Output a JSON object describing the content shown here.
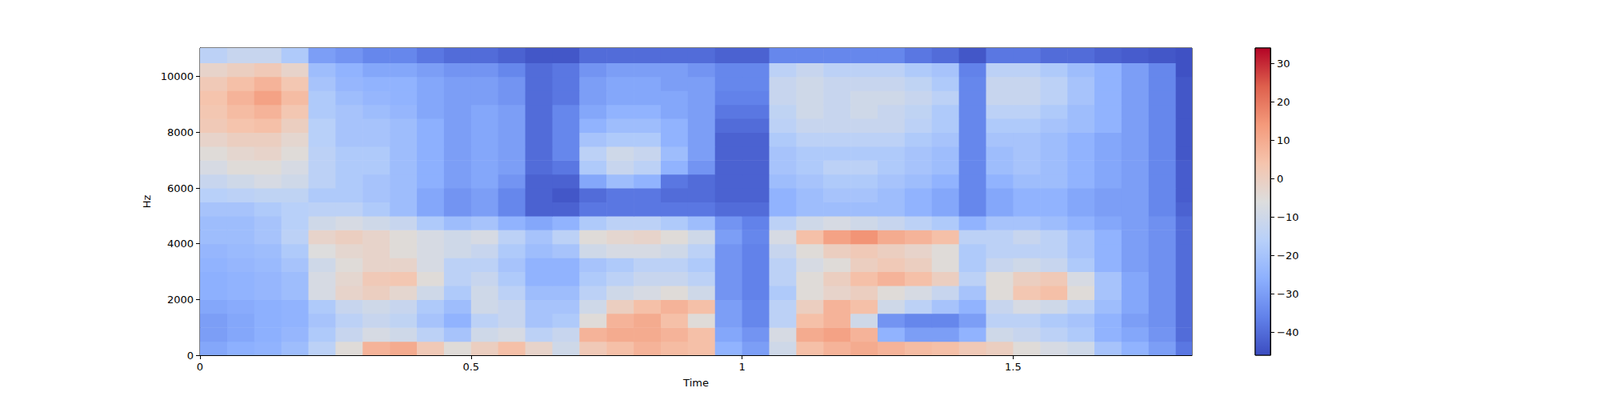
{
  "chart_data": {
    "type": "heatmap",
    "x_label": "Time",
    "y_label": "Hz",
    "x_edges": [
      0,
      0.05,
      0.1,
      0.15,
      0.2,
      0.25,
      0.3,
      0.35,
      0.4,
      0.45,
      0.5,
      0.55,
      0.6,
      0.65,
      0.7,
      0.75,
      0.8,
      0.85,
      0.9,
      0.95,
      1,
      1.05,
      1.1,
      1.15,
      1.2,
      1.25,
      1.3,
      1.35,
      1.4,
      1.45,
      1.5,
      1.55,
      1.6,
      1.65,
      1.7,
      1.75,
      1.8,
      1.85
    ],
    "y_edges": [
      0,
      500,
      1000,
      1500,
      2000,
      2500,
      3000,
      3500,
      4000,
      4500,
      5000,
      5500,
      6000,
      6500,
      7000,
      7500,
      8000,
      8500,
      9000,
      9500,
      10000,
      10500,
      11025
    ],
    "cells": [
      [
        -28,
        -26,
        -25,
        -22,
        -15,
        -5,
        8,
        10,
        2,
        -5,
        0,
        5,
        -2,
        -10,
        2,
        5,
        8,
        6,
        5,
        -25,
        -30,
        -10,
        5,
        8,
        10,
        8,
        6,
        5,
        2,
        0,
        -5,
        -8,
        -10,
        -20,
        -25,
        -30,
        -38
      ],
      [
        -30,
        -28,
        -26,
        -24,
        -18,
        -12,
        -8,
        -10,
        -15,
        -20,
        -10,
        -8,
        -15,
        -12,
        8,
        10,
        10,
        8,
        5,
        -28,
        -32,
        -8,
        10,
        12,
        8,
        -25,
        -30,
        -30,
        -25,
        -10,
        -12,
        -15,
        -18,
        -25,
        -28,
        -32,
        -40
      ],
      [
        -30,
        -28,
        -26,
        -25,
        -20,
        -15,
        -12,
        -14,
        -20,
        -25,
        -15,
        -12,
        -20,
        -18,
        -5,
        8,
        10,
        5,
        -5,
        -30,
        -35,
        -15,
        5,
        8,
        -10,
        -32,
        -35,
        -35,
        -30,
        -15,
        -15,
        -18,
        -20,
        -25,
        -30,
        -33,
        -40
      ],
      [
        -28,
        -27,
        -26,
        -25,
        -18,
        -12,
        -10,
        -12,
        -18,
        -22,
        -10,
        -12,
        -20,
        -20,
        -10,
        0,
        5,
        8,
        5,
        -30,
        -35,
        -15,
        0,
        8,
        5,
        -10,
        -15,
        -20,
        -25,
        -12,
        -8,
        -10,
        -15,
        -22,
        -28,
        -33,
        -40
      ],
      [
        -26,
        -25,
        -24,
        -22,
        -8,
        -2,
        0,
        -3,
        -10,
        -18,
        -10,
        -15,
        -22,
        -22,
        -15,
        -10,
        -8,
        -5,
        -10,
        -32,
        -36,
        -18,
        -5,
        -2,
        0,
        -5,
        -8,
        -12,
        -20,
        -5,
        3,
        5,
        -5,
        -20,
        -28,
        -33,
        -40
      ],
      [
        -26,
        -25,
        -24,
        -22,
        -8,
        -3,
        2,
        3,
        -5,
        -15,
        -12,
        -18,
        -25,
        -25,
        -18,
        -15,
        -12,
        -12,
        -15,
        -32,
        -36,
        -15,
        -5,
        0,
        5,
        8,
        5,
        0,
        -15,
        -5,
        0,
        2,
        -8,
        -20,
        -28,
        -33,
        -40
      ],
      [
        -25,
        -24,
        -23,
        -20,
        -10,
        -5,
        -2,
        -2,
        -8,
        -15,
        -15,
        -20,
        -25,
        -25,
        -20,
        -18,
        -15,
        -15,
        -18,
        -32,
        -36,
        -15,
        -8,
        -5,
        0,
        2,
        0,
        -5,
        -18,
        -12,
        -10,
        -12,
        -18,
        -25,
        -30,
        -33,
        -40
      ],
      [
        -24,
        -23,
        -22,
        -18,
        -6,
        -3,
        -2,
        -5,
        -8,
        -10,
        -12,
        -18,
        -22,
        -20,
        -10,
        -8,
        -8,
        -10,
        -15,
        -32,
        -36,
        -12,
        -5,
        0,
        2,
        0,
        -2,
        -5,
        -18,
        -15,
        -15,
        -15,
        -20,
        -25,
        -30,
        -33,
        -40
      ],
      [
        -22,
        -22,
        -20,
        -15,
        -2,
        0,
        -2,
        -5,
        -8,
        -10,
        -8,
        -15,
        -20,
        -15,
        -5,
        -3,
        -2,
        -5,
        -10,
        -30,
        -35,
        -8,
        5,
        12,
        15,
        10,
        8,
        5,
        -15,
        -15,
        -12,
        -15,
        -20,
        -25,
        -30,
        -33,
        -40
      ],
      [
        -22,
        -22,
        -20,
        -16,
        -10,
        -8,
        -10,
        -12,
        -18,
        -22,
        -20,
        -25,
        -28,
        -25,
        -18,
        -15,
        -15,
        -18,
        -22,
        -32,
        -36,
        -15,
        -10,
        -8,
        -10,
        -12,
        -15,
        -18,
        -25,
        -20,
        -20,
        -22,
        -25,
        -28,
        -30,
        -33,
        -40
      ],
      [
        -20,
        -20,
        -18,
        -16,
        -15,
        -15,
        -18,
        -22,
        -28,
        -32,
        -30,
        -35,
        -42,
        -42,
        -38,
        -38,
        -38,
        -38,
        -38,
        -40,
        -40,
        -25,
        -22,
        -22,
        -22,
        -22,
        -25,
        -28,
        -35,
        -28,
        -25,
        -25,
        -28,
        -30,
        -30,
        -35,
        -42
      ],
      [
        -16,
        -15,
        -14,
        -14,
        -18,
        -18,
        -20,
        -22,
        -28,
        -32,
        -30,
        -35,
        -42,
        -44,
        -40,
        -38,
        -38,
        -40,
        -40,
        -42,
        -42,
        -25,
        -22,
        -20,
        -20,
        -22,
        -25,
        -28,
        -35,
        -28,
        -25,
        -25,
        -28,
        -30,
        -30,
        -35,
        -43
      ],
      [
        -12,
        -10,
        -8,
        -10,
        -15,
        -18,
        -20,
        -22,
        -26,
        -30,
        -28,
        -32,
        -42,
        -42,
        -28,
        -22,
        -25,
        -38,
        -40,
        -42,
        -42,
        -22,
        -20,
        -18,
        -18,
        -20,
        -22,
        -25,
        -35,
        -25,
        -22,
        -22,
        -25,
        -28,
        -30,
        -35,
        -43
      ],
      [
        -8,
        -5,
        -5,
        -8,
        -15,
        -18,
        -18,
        -22,
        -26,
        -30,
        -28,
        -30,
        -40,
        -38,
        -18,
        -12,
        -15,
        -25,
        -32,
        -42,
        -42,
        -20,
        -18,
        -15,
        -15,
        -18,
        -20,
        -22,
        -35,
        -22,
        -20,
        -22,
        -25,
        -28,
        -30,
        -35,
        -43
      ],
      [
        -5,
        -3,
        -2,
        -5,
        -15,
        -18,
        -18,
        -22,
        -26,
        -30,
        -28,
        -30,
        -40,
        -35,
        -15,
        -10,
        -12,
        -22,
        -30,
        -42,
        -42,
        -20,
        -18,
        -18,
        -18,
        -18,
        -20,
        -22,
        -35,
        -22,
        -20,
        -22,
        -25,
        -28,
        -30,
        -35,
        -44
      ],
      [
        -2,
        0,
        0,
        -3,
        -16,
        -20,
        -20,
        -22,
        -26,
        -30,
        -28,
        -30,
        -40,
        -35,
        -20,
        -18,
        -18,
        -25,
        -30,
        -42,
        -42,
        -18,
        -15,
        -15,
        -15,
        -15,
        -18,
        -20,
        -35,
        -20,
        -20,
        -22,
        -25,
        -28,
        -30,
        -35,
        -44
      ],
      [
        2,
        4,
        5,
        0,
        -16,
        -20,
        -20,
        -22,
        -26,
        -30,
        -28,
        -30,
        -40,
        -35,
        -25,
        -22,
        -22,
        -25,
        -30,
        -40,
        -40,
        -15,
        -12,
        -12,
        -12,
        -12,
        -15,
        -18,
        -35,
        -18,
        -18,
        -20,
        -22,
        -25,
        -30,
        -35,
        -44
      ],
      [
        3,
        6,
        8,
        3,
        -18,
        -20,
        -22,
        -24,
        -28,
        -30,
        -28,
        -30,
        -40,
        -35,
        -28,
        -25,
        -25,
        -28,
        -30,
        -38,
        -38,
        -14,
        -10,
        -12,
        -10,
        -12,
        -14,
        -18,
        -35,
        -15,
        -15,
        -18,
        -22,
        -25,
        -30,
        -35,
        -44
      ],
      [
        4,
        8,
        12,
        6,
        -18,
        -22,
        -24,
        -25,
        -28,
        -30,
        -30,
        -32,
        -40,
        -38,
        -30,
        -28,
        -28,
        -28,
        -30,
        -36,
        -36,
        -12,
        -10,
        -12,
        -10,
        -10,
        -12,
        -15,
        -35,
        -12,
        -12,
        -15,
        -20,
        -25,
        -30,
        -35,
        -44
      ],
      [
        2,
        5,
        8,
        3,
        -20,
        -24,
        -25,
        -25,
        -28,
        -30,
        -30,
        -32,
        -40,
        -38,
        -30,
        -28,
        -28,
        -30,
        -30,
        -35,
        -35,
        -12,
        -10,
        -12,
        -12,
        -12,
        -14,
        -18,
        -35,
        -12,
        -12,
        -15,
        -20,
        -25,
        -30,
        -35,
        -44
      ],
      [
        -2,
        0,
        2,
        -2,
        -22,
        -25,
        -28,
        -28,
        -30,
        -32,
        -32,
        -35,
        -40,
        -38,
        -32,
        -30,
        -30,
        -30,
        -32,
        -35,
        -35,
        -15,
        -12,
        -15,
        -15,
        -15,
        -18,
        -20,
        -36,
        -15,
        -15,
        -18,
        -22,
        -25,
        -30,
        -35,
        -45
      ],
      [
        -15,
        -12,
        -12,
        -18,
        -30,
        -32,
        -35,
        -35,
        -38,
        -40,
        -40,
        -42,
        -44,
        -44,
        -40,
        -40,
        -40,
        -40,
        -40,
        -42,
        -42,
        -35,
        -35,
        -35,
        -35,
        -35,
        -38,
        -40,
        -44,
        -38,
        -38,
        -40,
        -40,
        -42,
        -43,
        -44,
        -45
      ]
    ],
    "xlim": [
      0,
      1.83
    ],
    "ylim": [
      0,
      11025
    ],
    "xticks": [
      0,
      0.5,
      1,
      1.5
    ],
    "yticks": [
      0,
      2000,
      4000,
      6000,
      8000,
      10000
    ],
    "colorbar": {
      "range": [
        -46,
        34
      ],
      "ticks": [
        {
          "value": -40,
          "label": "−40"
        },
        {
          "value": -30,
          "label": "−30"
        },
        {
          "value": -20,
          "label": "−20"
        },
        {
          "value": -10,
          "label": "−10"
        },
        0,
        10,
        20,
        30
      ]
    }
  }
}
